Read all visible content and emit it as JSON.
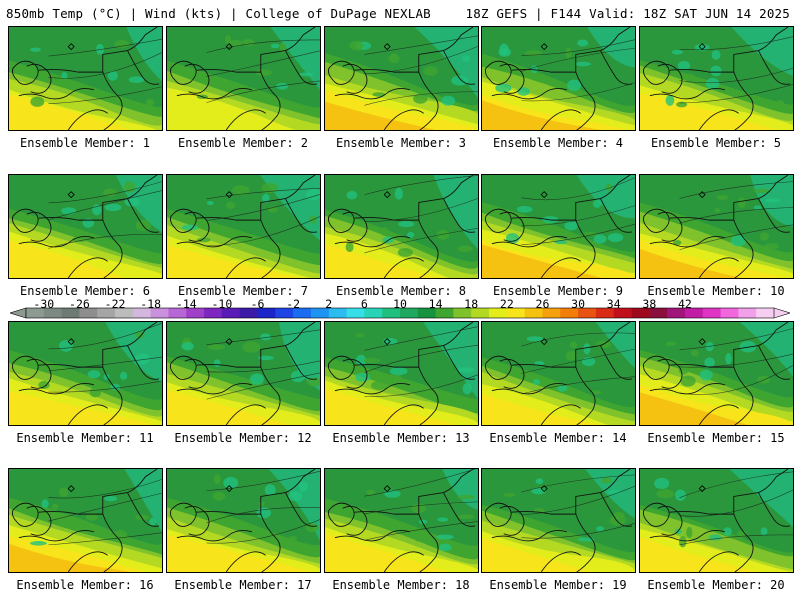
{
  "header": {
    "left": "850mb Temp (°C) | Wind (kts) | College of DuPage NEXLAB",
    "right": "18Z GEFS | F144 Valid: 18Z SAT JUN 14 2025"
  },
  "members": [
    "Ensemble Member: 1",
    "Ensemble Member: 2",
    "Ensemble Member: 3",
    "Ensemble Member: 4",
    "Ensemble Member: 5",
    "Ensemble Member: 6",
    "Ensemble Member: 7",
    "Ensemble Member: 8",
    "Ensemble Member: 9",
    "Ensemble Member: 10",
    "Ensemble Member: 11",
    "Ensemble Member: 12",
    "Ensemble Member: 13",
    "Ensemble Member: 14",
    "Ensemble Member: 15",
    "Ensemble Member: 16",
    "Ensemble Member: 17",
    "Ensemble Member: 18",
    "Ensemble Member: 19",
    "Ensemble Member: 20"
  ],
  "colorbar": {
    "labels": [
      "-30",
      "-26",
      "-22",
      "-18",
      "-14",
      "-10",
      "-6",
      "-2",
      "2",
      "6",
      "10",
      "14",
      "18",
      "22",
      "26",
      "30",
      "34",
      "38",
      "42"
    ],
    "colors": [
      "#8c9a92",
      "#7d8a84",
      "#6e7a74",
      "#8e8e8e",
      "#a5a5a5",
      "#bcbcbc",
      "#d3b7de",
      "#c890dd",
      "#b766d6",
      "#a040c8",
      "#7e26c0",
      "#5a1cb8",
      "#3a1aa6",
      "#1b25c8",
      "#1e44e6",
      "#1a6cf0",
      "#1f93f2",
      "#2dbcef",
      "#36dfe8",
      "#27d5b6",
      "#22c07e",
      "#1fa860",
      "#17923f",
      "#3ea531",
      "#7fc22c",
      "#b4d923",
      "#e2ed1b",
      "#f7e41a",
      "#f6c211",
      "#f6a00b",
      "#f27d09",
      "#e85312",
      "#d92b16",
      "#c0101c",
      "#9e0a1c",
      "#8a0f3c",
      "#a1147a",
      "#c21ca6",
      "#df33c6",
      "#f068dc",
      "#f3a0ea",
      "#f6cef2"
    ],
    "pointer_left": "#8c9a92",
    "pointer_right": "#f6cef2"
  }
}
